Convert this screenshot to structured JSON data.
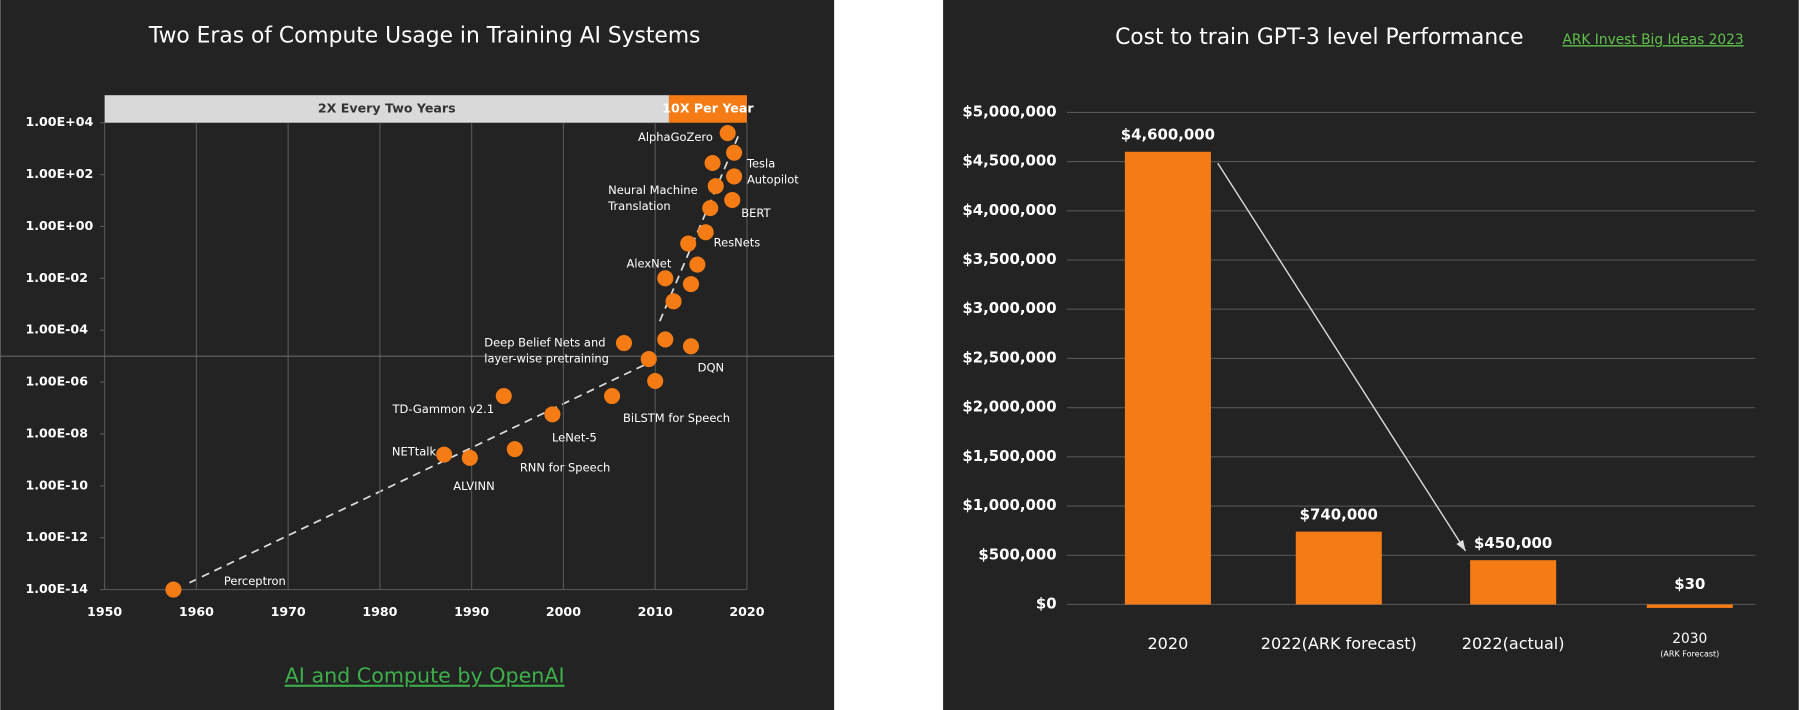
{
  "chart_data": [
    {
      "type": "scatter",
      "title": "Two Eras of Compute Usage in Training AI Systems",
      "source": "AI and Compute by OpenAI",
      "eras": [
        {
          "label": "2X Every Two Years",
          "from": 1950,
          "to": 2011.5,
          "color": "#d9d9d9"
        },
        {
          "label": "10X Per Year",
          "from": 2011.5,
          "to": 2020,
          "color": "#f57c14"
        }
      ],
      "x": [
        1957.5,
        1987,
        1989.8,
        1994.7,
        1993.5,
        1998.8,
        2005.3,
        2010,
        2006.6,
        2009.3,
        2011.1,
        2013.9,
        2012,
        2011.1,
        2013.9,
        2014.6,
        2013.6,
        2015.5,
        2016,
        2016.6,
        2016.25,
        2018.4,
        2018.6,
        2018.6,
        2017.9
      ],
      "values": [
        1e-14,
        1.6e-09,
        1.2e-09,
        2.6e-09,
        2.9e-07,
        5.7e-08,
        2.9e-07,
        1.1e-06,
        3.2e-05,
        7.7e-06,
        4.4e-05,
        2.4e-05,
        0.0013,
        0.01,
        0.006,
        0.034,
        0.22,
        0.6,
        5.1,
        36,
        280,
        10.5,
        85,
        700,
        4000
      ],
      "point_labels": [
        [
          "Perceptron"
        ],
        [
          "NETtalk"
        ],
        [
          "ALVINN"
        ],
        [
          "RNN for Speech"
        ],
        [
          "TD-Gammon v2.1"
        ],
        [
          "LeNet-5"
        ],
        null,
        [
          "BiLSTM for Speech"
        ],
        [
          "Deep Belief Nets and",
          "layer-wise pretraining"
        ],
        null,
        null,
        [
          "DQN"
        ],
        null,
        [
          "AlexNet"
        ],
        null,
        null,
        [
          "ResNets"
        ],
        null,
        null,
        [
          "Neural Machine",
          "Translation"
        ],
        null,
        [
          "BERT"
        ],
        [
          "Tesla",
          "Autopilot"
        ],
        null,
        [
          "AlphaGoZero"
        ]
      ],
      "color": "#f57c14",
      "log_y": true,
      "grid": true,
      "xlim": [
        1950,
        2020
      ],
      "xticks": [
        1950,
        1960,
        1970,
        1980,
        1990,
        2000,
        2010,
        2020
      ],
      "ylim": [
        1e-14,
        10000.0
      ],
      "yticks": [
        {
          "value": 10000.0,
          "label": "1.00E+04"
        },
        {
          "value": 100.0,
          "label": "1.00E+02"
        },
        {
          "value": 1,
          "label": "1.00E+00"
        },
        {
          "value": 0.01,
          "label": "1.00E-02"
        },
        {
          "value": 0.0001,
          "label": "1.00E-04"
        },
        {
          "value": 1e-06,
          "label": "1.00E-06"
        },
        {
          "value": 1e-08,
          "label": "1.00E-08"
        },
        {
          "value": 1e-10,
          "label": "1.00E-10"
        },
        {
          "value": 1e-12,
          "label": "1.00E-12"
        },
        {
          "value": 1e-14,
          "label": "1.00E-14"
        }
      ]
    },
    {
      "type": "bar",
      "title": "Cost to train GPT-3 level Performance",
      "source": "ARK Invest Big Ideas 2023",
      "categories": [
        "2020",
        "2022(ARK forecast)",
        "2022(actual)",
        "2030"
      ],
      "category_notes": [
        null,
        null,
        null,
        "(ARK Forecast)"
      ],
      "values": [
        4600000,
        740000,
        450000,
        30
      ],
      "value_labels": [
        "$4,600,000",
        "$740,000",
        "$450,000",
        "$30"
      ],
      "color": "#f57c14",
      "grid": true,
      "ylim": [
        0,
        5000000
      ],
      "yticks": [
        {
          "value": 0,
          "label": "$0"
        },
        {
          "value": 500000,
          "label": "$500,000"
        },
        {
          "value": 1000000,
          "label": "$1,000,000"
        },
        {
          "value": 1500000,
          "label": "$1,500,000"
        },
        {
          "value": 2000000,
          "label": "$2,000,000"
        },
        {
          "value": 2500000,
          "label": "$2,500,000"
        },
        {
          "value": 3000000,
          "label": "$3,000,000"
        },
        {
          "value": 3500000,
          "label": "$3,500,000"
        },
        {
          "value": 4000000,
          "label": "$4,000,000"
        },
        {
          "value": 4500000,
          "label": "$4,500,000"
        },
        {
          "value": 5000000,
          "label": "$5,000,000"
        }
      ]
    }
  ]
}
